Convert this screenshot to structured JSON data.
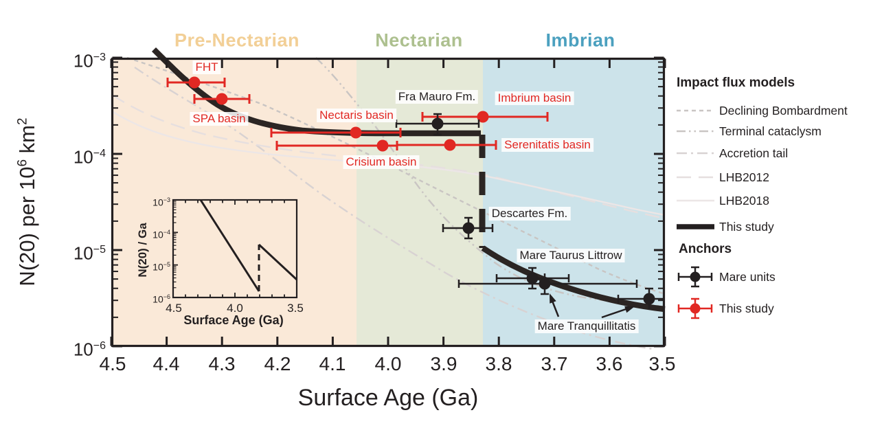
{
  "colors": {
    "ink": "#231f20",
    "accent_red": "#e12823",
    "band_pre_nectarian": "#fae9d8",
    "band_nectarian": "#e5e9d7",
    "band_imbrian": "#cce3ea",
    "epoch_pre_nectarian_text": "#f2cf96",
    "epoch_nectarian_text": "#adc08f",
    "epoch_imbrian_text": "#4ba0bf",
    "model_gray": "#c9c5c3",
    "model_gray_light": "#e6dfdf"
  },
  "epochs": {
    "pre_nectarian": "Pre-Nectarian",
    "nectarian": "Nectarian",
    "imbrian": "Imbrian"
  },
  "axis": {
    "x": {
      "title": "Surface Age (Ga)",
      "ticks": [
        "4.5",
        "4.4",
        "4.3",
        "4.2",
        "4.1",
        "4.0",
        "3.9",
        "3.8",
        "3.7",
        "3.6",
        "3.5"
      ]
    },
    "y": {
      "title_parts": {
        "p1": "N(20) per 10",
        "s1": "6",
        "p2": " km",
        "s2": "2"
      },
      "ticks": [
        {
          "base": "10",
          "exp": "−3"
        },
        {
          "base": "10",
          "exp": "−4"
        },
        {
          "base": "10",
          "exp": "−5"
        },
        {
          "base": "10",
          "exp": "−6"
        }
      ]
    }
  },
  "point_labels": {
    "fht": "FHT",
    "spa": "SPA basin",
    "nectaris": "Nectaris basin",
    "crisium": "Crisium basin",
    "fra_mauro": "Fra Mauro Fm.",
    "imbrium": "Imbrium basin",
    "serenitatis": "Serenitatis basin",
    "descartes": "Descartes Fm.",
    "taurus_littrow": "Mare Taurus Littrow",
    "tranquillitatis": "Mare Tranquillitatis"
  },
  "legend": {
    "flux_header": "Impact flux models",
    "flux_items": [
      {
        "label": "Declining Bombardment"
      },
      {
        "label": "Terminal cataclysm"
      },
      {
        "label": "Accretion tail"
      },
      {
        "label": "LHB2012"
      },
      {
        "label": "LHB2018"
      },
      {
        "label": "This study"
      }
    ],
    "anchors_header": "Anchors",
    "anchor_items": [
      {
        "label": "Mare units"
      },
      {
        "label": "This study"
      }
    ]
  },
  "inset": {
    "y_title": "N(20) / Ga",
    "x_title": "Surface Age (Ga)",
    "x_ticks": [
      "4.5",
      "4.0",
      "3.5"
    ],
    "y_ticks": [
      {
        "base": "10",
        "exp": "−3"
      },
      {
        "base": "10",
        "exp": "−4"
      },
      {
        "base": "10",
        "exp": "−5"
      },
      {
        "base": "10",
        "exp": "−6"
      }
    ]
  },
  "chart_data": {
    "type": "scatter",
    "xlabel": "Surface Age (Ga)",
    "ylabel": "N(20) per 10^6 km^2",
    "xlim": [
      4.5,
      3.5
    ],
    "x_reversed": true,
    "ylim": [
      1e-06,
      0.001
    ],
    "yscale": "log",
    "grid": false,
    "legend_position": "right-outside",
    "epoch_bands": [
      {
        "name": "Pre-Nectarian",
        "from": 4.5,
        "to": 4.06
      },
      {
        "name": "Nectarian",
        "from": 4.06,
        "to": 3.83
      },
      {
        "name": "Imbrian",
        "from": 3.83,
        "to": 3.5
      }
    ],
    "series": [
      {
        "name": "This study (anchors)",
        "marker": "circle",
        "color": "#e12823",
        "points": [
          {
            "label": "FHT",
            "age": 4.35,
            "age_range": [
              4.4,
              4.29
            ],
            "n20": 0.00055
          },
          {
            "label": "SPA basin",
            "age": 4.3,
            "age_range": [
              4.35,
              4.25
            ],
            "n20": 0.00037
          },
          {
            "label": "Nectaris basin",
            "age": 4.06,
            "age_range": [
              4.21,
              3.98
            ],
            "n20": 0.00017
          },
          {
            "label": "Crisium basin",
            "age": 4.01,
            "age_range": [
              4.2,
              3.98
            ],
            "n20": 0.00012
          },
          {
            "label": "Serenitatis basin",
            "age": 3.89,
            "age_range": [
              3.98,
              3.8
            ],
            "n20": 0.00012
          },
          {
            "label": "Imbrium basin",
            "age": 3.83,
            "age_range": [
              3.94,
              3.71
            ],
            "n20": 0.00024
          }
        ]
      },
      {
        "name": "Mare units (anchors)",
        "marker": "circle",
        "color": "#231f20",
        "points": [
          {
            "label": "Fra Mauro Fm.",
            "age": 3.91,
            "age_range": [
              3.99,
              3.84
            ],
            "n20": 0.00021
          },
          {
            "label": "Descartes Fm.",
            "age": 3.85,
            "age_range": [
              3.9,
              3.81
            ],
            "n20": 1.7e-05
          },
          {
            "label": "Mare Taurus Littrow",
            "age": 3.74,
            "age_range": [
              3.8,
              3.67
            ],
            "n20": 5.1e-06
          },
          {
            "label": "Mare Tranquillitatis",
            "age": 3.72,
            "age_range": [
              3.87,
              3.55
            ],
            "n20": 4.5e-06
          },
          {
            "label": "Mare Tranquillitatis",
            "age": 3.53,
            "age_range": [
              3.58,
              3.5
            ],
            "n20": 3.1e-06
          }
        ]
      },
      {
        "name": "This study (curve)",
        "type": "line",
        "color": "#231f20",
        "segments": [
          {
            "style": "solid",
            "points": [
              [
                4.42,
                0.0012
              ],
              [
                4.35,
                0.00055
              ],
              [
                4.3,
                0.00037
              ],
              [
                4.2,
                0.00024
              ],
              [
                4.1,
                0.00019
              ],
              [
                4.0,
                0.000175
              ],
              [
                3.83,
                0.00017
              ]
            ]
          },
          {
            "style": "dashed",
            "points": [
              [
                3.83,
                0.00017
              ],
              [
                3.83,
                1.1e-05
              ]
            ]
          },
          {
            "style": "solid",
            "points": [
              [
                3.83,
                1.1e-05
              ],
              [
                3.7,
                6.2e-06
              ],
              [
                3.6,
                3.7e-06
              ],
              [
                3.5,
                2.4e-06
              ]
            ]
          }
        ]
      }
    ],
    "model_curves": [
      "Declining Bombardment",
      "Terminal cataclysm",
      "Accretion tail",
      "LHB2012",
      "LHB2018"
    ],
    "inset": {
      "xlabel": "Surface Age (Ga)",
      "ylabel": "N(20) / Ga",
      "xlim": [
        4.5,
        3.5
      ],
      "ylim": [
        1e-06,
        0.001
      ],
      "yscale": "log",
      "segments": [
        {
          "style": "solid",
          "points": [
            [
              4.28,
              0.001
            ],
            [
              3.81,
              1.3e-06
            ]
          ]
        },
        {
          "style": "dashed",
          "points": [
            [
              3.81,
              1.3e-06
            ],
            [
              3.81,
              4e-05
            ]
          ]
        },
        {
          "style": "solid",
          "points": [
            [
              3.81,
              4e-05
            ],
            [
              3.5,
              3.3e-06
            ]
          ]
        }
      ]
    }
  }
}
